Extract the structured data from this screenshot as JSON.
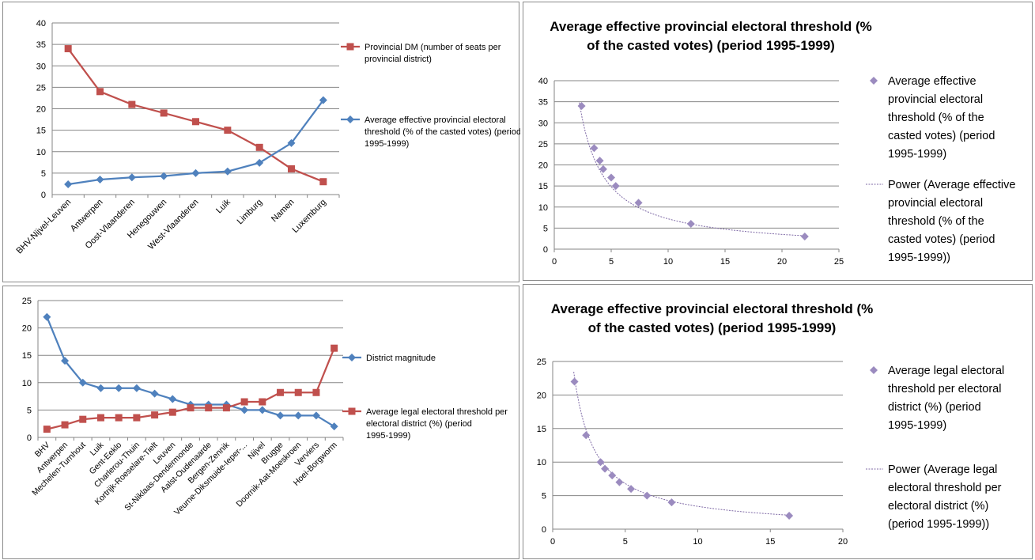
{
  "colors": {
    "red": "#c0504d",
    "blue": "#4f81bd",
    "purple": "#9b8bbf",
    "grid": "#868686"
  },
  "chart_data": [
    {
      "type": "line",
      "title": "",
      "categories": [
        "BHV-Nijvel-Leuven",
        "Antwerpen",
        "Oost-Vlaanderen",
        "Henegouwen",
        "West-Vlaanderen",
        "Luik",
        "Limburg",
        "Namen",
        "Luxemburg"
      ],
      "ylim": [
        0,
        40
      ],
      "yticks": [
        0,
        5,
        10,
        15,
        20,
        25,
        30,
        35,
        40
      ],
      "grid": true,
      "legend": "right",
      "series": [
        {
          "name": "Provincial DM (number of seats per provincial district)",
          "marker": "square",
          "color": "#c0504d",
          "values": [
            34,
            24,
            21,
            19,
            17,
            15,
            11,
            6,
            3
          ]
        },
        {
          "name": "Average effective provincial electoral threshold (% of the casted votes) (period 1995-1999)",
          "marker": "diamond",
          "color": "#4f81bd",
          "values": [
            2.4,
            3.5,
            4,
            4.3,
            5,
            5.4,
            7.4,
            12,
            22
          ]
        }
      ]
    },
    {
      "type": "scatter",
      "title": "Average effective provincial electoral threshold (% of the casted votes) (period 1995-1999)",
      "xlim": [
        0,
        25
      ],
      "xticks": [
        0,
        5,
        10,
        15,
        20,
        25
      ],
      "ylim": [
        0,
        40
      ],
      "yticks": [
        0,
        5,
        10,
        15,
        20,
        25,
        30,
        35,
        40
      ],
      "grid": true,
      "legend": "right",
      "series": [
        {
          "name": "Average effective provincial electoral threshold (% of the casted votes) (period 1995-1999)",
          "x": [
            2.4,
            3.5,
            4,
            4.3,
            5,
            5.4,
            7.4,
            12,
            22
          ],
          "y": [
            34,
            24,
            21,
            19,
            17,
            15,
            11,
            6,
            3
          ]
        }
      ],
      "trendline": {
        "name": "Power (Average effective provincial electoral threshold (% of the casted votes) (period 1995-1999))",
        "type": "power",
        "a": 79,
        "b": -1.04,
        "x_range": [
          2.2,
          22
        ]
      }
    },
    {
      "type": "line",
      "title": "",
      "categories": [
        "BHV",
        "Antwerpen",
        "Mechelen-Turnhout",
        "Luik",
        "Gent-Eeklo",
        "Charlerou-Thuin",
        "Kortrijk-Roeselare-Tielt",
        "Leuven",
        "St-Niklaas-Dendermonde",
        "Aalst-Oudenaarde",
        "Bergen-Zennik",
        "Veurne-Diksmuide-Ieper-...",
        "Nijvel",
        "Brugge",
        "Doornik-Aat-Moeskroen",
        "Verviers",
        "Hoei-Borgworm"
      ],
      "ylim": [
        0,
        25
      ],
      "yticks": [
        0,
        5,
        10,
        15,
        20,
        25
      ],
      "grid": true,
      "legend": "right",
      "series": [
        {
          "name": "District magnitude",
          "marker": "diamond",
          "color": "#4f81bd",
          "values": [
            22,
            14,
            10,
            9,
            9,
            9,
            8,
            7,
            6,
            6,
            6,
            5,
            5,
            4,
            4,
            4,
            2
          ]
        },
        {
          "name": "Average legal electoral threshold per electoral district (%) (period 1995-1999)",
          "marker": "square",
          "color": "#c0504d",
          "values": [
            1.5,
            2.3,
            3.3,
            3.6,
            3.6,
            3.6,
            4.1,
            4.6,
            5.4,
            5.4,
            5.4,
            6.5,
            6.5,
            8.2,
            8.2,
            8.2,
            16.3
          ]
        }
      ]
    },
    {
      "type": "scatter",
      "title": "Average effective provincial electoral threshold (% of the casted votes) (period 1995-1999)",
      "xlim": [
        0,
        20
      ],
      "xticks": [
        0,
        5,
        10,
        15,
        20
      ],
      "ylim": [
        0,
        25
      ],
      "yticks": [
        0,
        5,
        10,
        15,
        20,
        25
      ],
      "grid": true,
      "legend": "right",
      "series": [
        {
          "name": "Average legal electoral threshold per electoral district (%) (period 1995-1999)",
          "x": [
            1.5,
            2.3,
            3.3,
            3.6,
            4.1,
            4.6,
            5.4,
            6.5,
            8.2,
            16.3
          ],
          "y": [
            22,
            14,
            10,
            9,
            8,
            7,
            6,
            5,
            4,
            2
          ]
        }
      ],
      "trendline": {
        "name": "Power (Average legal electoral threshold per electoral district (%) (period 1995-1999))",
        "type": "power",
        "a": 34,
        "b": -1.0,
        "x_range": [
          1.45,
          16.3
        ]
      }
    }
  ]
}
